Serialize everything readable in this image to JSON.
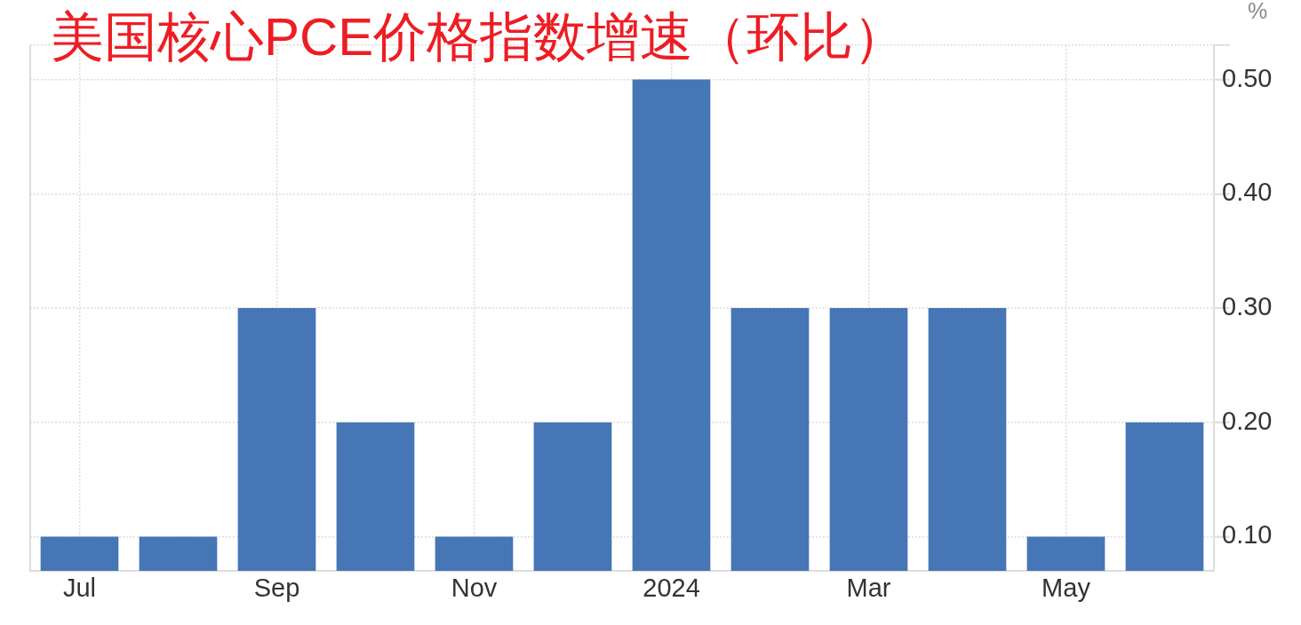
{
  "chart_data": {
    "type": "bar",
    "title": "美国核心PCE价格指数增速（环比）",
    "ylabel": "%",
    "categories": [
      "Jul",
      null,
      "Sep",
      null,
      "Nov",
      null,
      "2024",
      null,
      "Mar",
      null,
      "May",
      null
    ],
    "values": [
      0.1,
      0.1,
      0.3,
      0.2,
      0.1,
      0.2,
      0.5,
      0.3,
      0.3,
      0.3,
      0.1,
      0.2
    ],
    "color": "#4676b6",
    "ylim": [
      0.07,
      0.53
    ],
    "yticks": [
      {
        "value": 0.1,
        "label": "0.10"
      },
      {
        "value": 0.2,
        "label": "0.20"
      },
      {
        "value": 0.3,
        "label": "0.30"
      },
      {
        "value": 0.4,
        "label": "0.40"
      },
      {
        "value": 0.5,
        "label": "0.50"
      },
      {
        "value": 0.53,
        "label": null
      }
    ],
    "grid": true
  }
}
